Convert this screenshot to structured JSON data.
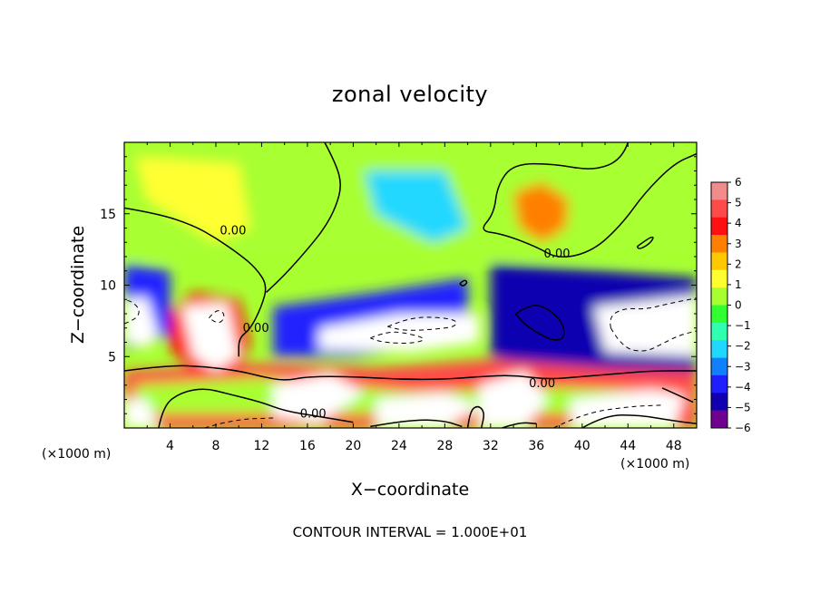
{
  "chart_data": {
    "type": "heatmap",
    "title": "zonal velocity",
    "xlabel": "X−coordinate",
    "ylabel": "Z−coordinate",
    "x_unit_left": "(×1000 m)",
    "x_unit_right": "(×1000 m)",
    "xlim": [
      0,
      50
    ],
    "ylim": [
      0,
      20
    ],
    "x_ticks": [
      4,
      8,
      12,
      16,
      20,
      24,
      28,
      32,
      36,
      40,
      44,
      48
    ],
    "x_tick_labels": [
      "4",
      "8",
      "12",
      "16",
      "20",
      "24",
      "28",
      "32",
      "36",
      "40",
      "44",
      "48"
    ],
    "y_ticks": [
      5,
      10,
      15
    ],
    "y_tick_labels": [
      "5",
      "10",
      "15"
    ],
    "colorbar": {
      "min": -6,
      "max": 6,
      "ticks": [
        6,
        5,
        4,
        3,
        2,
        1,
        0,
        -1,
        -2,
        -3,
        -4,
        -5,
        -6
      ],
      "tick_labels": [
        "6",
        "5",
        "4",
        "3",
        "2",
        "1",
        "0",
        "−1",
        "−2",
        "−3",
        "−4",
        "−5",
        "−6"
      ],
      "colors": [
        "#f08c8c",
        "#ff4a4a",
        "#ff1010",
        "#ff8000",
        "#ffc800",
        "#ffff30",
        "#a8ff30",
        "#30ff30",
        "#30ffb0",
        "#20d8ff",
        "#1080ff",
        "#2020ff",
        "#1000b0",
        "#700090"
      ],
      "out_of_range_color": "#ffffff"
    },
    "contour_interval_text": "CONTOUR INTERVAL = 1.000E+01",
    "contour_labels": [
      {
        "text": "0.00",
        "x": 9.5,
        "y": 13.8
      },
      {
        "text": "0.00",
        "x": 11.5,
        "y": 7.0
      },
      {
        "text": "0.00",
        "x": 16.5,
        "y": 1.0
      },
      {
        "text": "0.00",
        "x": 37.8,
        "y": 12.2
      },
      {
        "text": "0.00",
        "x": 36.5,
        "y": 3.1
      }
    ],
    "regions": [
      {
        "name": "upper-band",
        "points": [
          [
            0,
            20
          ],
          [
            50,
            20
          ],
          [
            50,
            12
          ],
          [
            0,
            12
          ]
        ],
        "value": 0.2
      },
      {
        "name": "upper-left-yellow",
        "points": [
          [
            1,
            19
          ],
          [
            10,
            18.5
          ],
          [
            11,
            14
          ],
          [
            8,
            13
          ],
          [
            5,
            14.5
          ],
          [
            2,
            16
          ]
        ],
        "value": 1.2
      },
      {
        "name": "core-36-15",
        "points": [
          [
            34,
            16.5
          ],
          [
            36.5,
            17.2
          ],
          [
            38.8,
            16
          ],
          [
            38.6,
            14
          ],
          [
            36.5,
            13
          ],
          [
            34.5,
            14
          ]
        ],
        "value": 2.8
      },
      {
        "name": "upper-cyan",
        "points": [
          [
            21,
            18
          ],
          [
            28,
            18
          ],
          [
            30,
            14
          ],
          [
            27,
            13
          ],
          [
            22,
            15
          ]
        ],
        "value": -1.8
      },
      {
        "name": "blue-band-left",
        "points": [
          [
            0,
            11.5
          ],
          [
            4,
            11
          ],
          [
            4,
            6.5
          ],
          [
            0,
            5.5
          ]
        ],
        "value": -3.5
      },
      {
        "name": "blue-band-mid",
        "points": [
          [
            13,
            8.5
          ],
          [
            22,
            9.5
          ],
          [
            30,
            10.5
          ],
          [
            30,
            6
          ],
          [
            20,
            5
          ],
          [
            13,
            5
          ]
        ],
        "value": -4.2
      },
      {
        "name": "blue-band-right",
        "points": [
          [
            32,
            11.5
          ],
          [
            42,
            11
          ],
          [
            50,
            10.5
          ],
          [
            50,
            3
          ],
          [
            40,
            3.5
          ],
          [
            32,
            5
          ]
        ],
        "value": -4.6
      },
      {
        "name": "orange-blob-left",
        "points": [
          [
            4,
            8
          ],
          [
            6,
            9.5
          ],
          [
            10,
            9
          ],
          [
            11,
            6
          ],
          [
            10,
            4
          ],
          [
            6,
            4
          ],
          [
            4,
            5.5
          ]
        ],
        "value": 3.5
      },
      {
        "name": "red-lower-band",
        "points": [
          [
            0,
            4
          ],
          [
            12,
            4.5
          ],
          [
            22,
            4.2
          ],
          [
            32,
            4.8
          ],
          [
            42,
            4.2
          ],
          [
            50,
            4
          ],
          [
            50,
            0
          ],
          [
            0,
            0
          ]
        ],
        "value": 4.5
      },
      {
        "name": "low-green-strip",
        "points": [
          [
            1,
            3
          ],
          [
            12,
            3.5
          ],
          [
            25,
            2.5
          ],
          [
            38,
            2.8
          ],
          [
            48,
            2.5
          ],
          [
            48,
            1
          ],
          [
            1,
            1
          ]
        ],
        "value": 0.5
      },
      {
        "name": "hollow-left",
        "points": [
          [
            0,
            9
          ],
          [
            2,
            9.2
          ],
          [
            3,
            6.5
          ],
          [
            2,
            5.6
          ],
          [
            0,
            6
          ]
        ],
        "value": -7
      },
      {
        "name": "hollow-blob",
        "points": [
          [
            5,
            8.5
          ],
          [
            9,
            8.8
          ],
          [
            10,
            5
          ],
          [
            8,
            4
          ],
          [
            6,
            5
          ]
        ],
        "value": 7
      },
      {
        "name": "hollow-mid",
        "points": [
          [
            17,
            7
          ],
          [
            24,
            8
          ],
          [
            31,
            8
          ],
          [
            31,
            6
          ],
          [
            25,
            5.3
          ],
          [
            17,
            5.5
          ]
        ],
        "value": -7
      },
      {
        "name": "hollow-right",
        "points": [
          [
            41,
            8.5
          ],
          [
            50,
            9.3
          ],
          [
            50,
            5
          ],
          [
            42,
            5.3
          ]
        ],
        "value": -7
      },
      {
        "name": "hollow-bottom-1",
        "points": [
          [
            13,
            3
          ],
          [
            18,
            3.8
          ],
          [
            21,
            2.5
          ],
          [
            17,
            0.3
          ],
          [
            13,
            0.8
          ]
        ],
        "value": 7
      },
      {
        "name": "hollow-bottom-2",
        "points": [
          [
            22,
            2
          ],
          [
            28,
            2.5
          ],
          [
            31,
            1.5
          ],
          [
            28,
            0
          ],
          [
            22,
            0
          ]
        ],
        "value": 7
      },
      {
        "name": "hollow-bottom-3",
        "points": [
          [
            31,
            3
          ],
          [
            35,
            4
          ],
          [
            37,
            2
          ],
          [
            35,
            0
          ],
          [
            31,
            0
          ]
        ],
        "value": 7
      },
      {
        "name": "hollow-bottom-4",
        "points": [
          [
            39,
            2
          ],
          [
            46,
            2.7
          ],
          [
            49,
            2.3
          ],
          [
            48,
            0
          ],
          [
            39,
            0
          ]
        ],
        "value": -7
      },
      {
        "name": "hollow-bottom-5",
        "points": [
          [
            0,
            2
          ],
          [
            2,
            2
          ],
          [
            3,
            0
          ],
          [
            0,
            0
          ]
        ],
        "value": 7
      }
    ],
    "contours": [
      {
        "style": "solid",
        "points": [
          [
            0,
            15.4
          ],
          [
            3,
            15
          ],
          [
            6,
            14.2
          ],
          [
            8,
            13.3
          ],
          [
            10,
            12.2
          ],
          [
            11.5,
            11.2
          ],
          [
            12.5,
            10
          ],
          [
            12,
            8.5
          ],
          [
            11,
            6.9
          ],
          [
            10,
            6.3
          ],
          [
            10,
            5
          ]
        ]
      },
      {
        "style": "solid",
        "points": [
          [
            17.5,
            20
          ],
          [
            18.5,
            18.5
          ],
          [
            19,
            17
          ],
          [
            18.5,
            15.5
          ],
          [
            17.5,
            14
          ],
          [
            16,
            12.5
          ],
          [
            14,
            10.7
          ],
          [
            12.4,
            9.5
          ]
        ]
      },
      {
        "style": "solid",
        "points": [
          [
            44,
            20
          ],
          [
            43.5,
            18.8
          ],
          [
            41,
            18
          ],
          [
            37.5,
            18.5
          ],
          [
            34,
            18.5
          ],
          [
            32.6,
            17
          ],
          [
            32.3,
            15
          ],
          [
            31,
            13.8
          ],
          [
            33,
            13.6
          ],
          [
            36,
            12.7
          ],
          [
            38,
            11.8
          ],
          [
            41,
            12.4
          ],
          [
            43.5,
            14.3
          ],
          [
            45.5,
            16.5
          ],
          [
            48,
            18.5
          ],
          [
            50,
            19.2
          ]
        ]
      },
      {
        "style": "solid",
        "points": [
          [
            0,
            4
          ],
          [
            4,
            4.4
          ],
          [
            7,
            4.3
          ],
          [
            10,
            4
          ],
          [
            12,
            3.6
          ],
          [
            14,
            3.3
          ],
          [
            16,
            3.6
          ],
          [
            20,
            3.6
          ],
          [
            24,
            3.4
          ],
          [
            28,
            3.4
          ],
          [
            31,
            3.6
          ],
          [
            34,
            3.7
          ],
          [
            37,
            3.4
          ],
          [
            40,
            3.6
          ],
          [
            43,
            3.8
          ],
          [
            46,
            4
          ],
          [
            50,
            4
          ]
        ]
      },
      {
        "style": "solid",
        "points": [
          [
            3,
            0
          ],
          [
            3.4,
            1.6
          ],
          [
            5,
            2.5
          ],
          [
            7,
            2.8
          ],
          [
            9,
            2.4
          ],
          [
            12,
            1.8
          ],
          [
            14,
            1.2
          ],
          [
            17,
            0.8
          ],
          [
            20,
            0.4
          ]
        ]
      },
      {
        "style": "solid",
        "points": [
          [
            34.2,
            8
          ],
          [
            35.5,
            8.7
          ],
          [
            37,
            8.4
          ],
          [
            38.3,
            7.4
          ],
          [
            38.5,
            6.3
          ],
          [
            37.5,
            6.1
          ],
          [
            36.2,
            6.6
          ],
          [
            34.9,
            7.3
          ],
          [
            34.2,
            8
          ]
        ]
      },
      {
        "style": "solid",
        "points": [
          [
            44.8,
            12.7
          ],
          [
            45.8,
            13.3
          ],
          [
            46.3,
            13.4
          ],
          [
            45.9,
            12.9
          ],
          [
            45,
            12.5
          ],
          [
            44.8,
            12.7
          ]
        ]
      },
      {
        "style": "solid",
        "points": [
          [
            29.3,
            10.1
          ],
          [
            29.7,
            10.4
          ],
          [
            30,
            10.2
          ],
          [
            29.6,
            9.9
          ],
          [
            29.3,
            10.1
          ]
        ]
      },
      {
        "style": "solid",
        "points": [
          [
            30,
            0
          ],
          [
            30.2,
            1.2
          ],
          [
            30.9,
            1.6
          ],
          [
            31.5,
            1.1
          ],
          [
            31.2,
            0
          ]
        ]
      },
      {
        "style": "dashed",
        "points": [
          [
            7.4,
            7.7
          ],
          [
            8,
            8.3
          ],
          [
            8.7,
            8.1
          ],
          [
            8.7,
            7.6
          ],
          [
            8.2,
            7.3
          ],
          [
            7.4,
            7.7
          ]
        ]
      },
      {
        "style": "dashed",
        "points": [
          [
            0,
            7.3
          ],
          [
            1,
            7.6
          ],
          [
            1.4,
            8.2
          ],
          [
            0.8,
            8.8
          ],
          [
            0,
            9
          ]
        ]
      },
      {
        "style": "dashed",
        "points": [
          [
            23,
            7.1
          ],
          [
            24.5,
            7.6
          ],
          [
            26.5,
            7.8
          ],
          [
            29,
            7.6
          ],
          [
            29,
            7.1
          ],
          [
            27,
            6.9
          ],
          [
            24.5,
            6.8
          ],
          [
            23,
            7.1
          ]
        ]
      },
      {
        "style": "dashed",
        "points": [
          [
            21.5,
            6.3
          ],
          [
            23,
            6.8
          ],
          [
            25,
            6.6
          ],
          [
            26.5,
            6.2
          ],
          [
            25,
            5.9
          ],
          [
            22.5,
            6
          ],
          [
            21.5,
            6.3
          ]
        ]
      },
      {
        "style": "dashed",
        "points": [
          [
            42.5,
            7
          ],
          [
            42.3,
            7.8
          ],
          [
            43.7,
            8.4
          ],
          [
            45.5,
            8.3
          ],
          [
            47.5,
            8.7
          ],
          [
            50,
            9.1
          ]
        ]
      },
      {
        "style": "dashed",
        "points": [
          [
            42.5,
            7
          ],
          [
            43.5,
            5.6
          ],
          [
            45.5,
            5.3
          ],
          [
            47,
            5.9
          ],
          [
            48.5,
            6.5
          ],
          [
            50,
            6.8
          ]
        ]
      },
      {
        "style": "dashed",
        "points": [
          [
            7,
            0
          ],
          [
            9.5,
            0.6
          ],
          [
            13,
            0.7
          ]
        ]
      },
      {
        "style": "dashed",
        "points": [
          [
            37.5,
            0
          ],
          [
            40,
            1
          ],
          [
            44,
            1.5
          ],
          [
            47,
            1.6
          ]
        ]
      },
      {
        "style": "solid",
        "points": [
          [
            21.5,
            0.1
          ],
          [
            25,
            0.6
          ],
          [
            28,
            0.5
          ],
          [
            29.5,
            0.1
          ]
        ]
      },
      {
        "style": "solid",
        "points": [
          [
            40,
            0
          ],
          [
            42,
            0.9
          ],
          [
            45,
            0.9
          ],
          [
            48,
            0.5
          ],
          [
            50,
            0.3
          ]
        ]
      },
      {
        "style": "solid",
        "points": [
          [
            47,
            2.8
          ],
          [
            48.4,
            2.3
          ],
          [
            49.7,
            1.8
          ]
        ]
      },
      {
        "style": "solid",
        "points": [
          [
            33,
            0
          ],
          [
            34.5,
            0.4
          ],
          [
            36,
            0.3
          ]
        ]
      }
    ]
  }
}
